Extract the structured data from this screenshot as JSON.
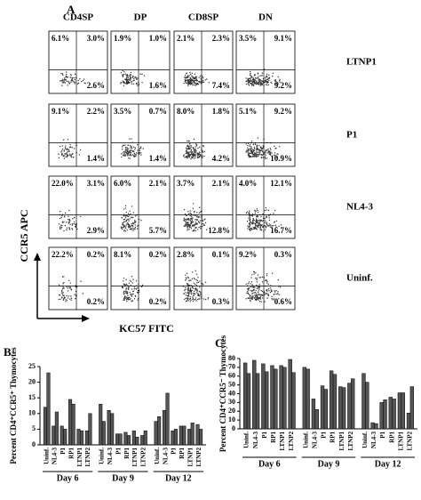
{
  "chart_data": [
    {
      "type": "flow-grid",
      "label": "A",
      "x_label": "KC57 FITC",
      "y_label": "CCR5 APC",
      "columns": [
        "CD4SP",
        "DP",
        "CD8SP",
        "DN"
      ],
      "rows": [
        "LTNP1",
        "P1",
        "NL4-3",
        "Uninf."
      ],
      "values": [
        [
          [
            6.1,
            3.0,
            2.6
          ],
          [
            1.9,
            1.0,
            1.6
          ],
          [
            2.1,
            2.3,
            7.4
          ],
          [
            3.5,
            9.1,
            9.2
          ]
        ],
        [
          [
            9.1,
            2.2,
            1.4
          ],
          [
            3.5,
            0.7,
            1.4
          ],
          [
            8.0,
            1.8,
            4.2
          ],
          [
            5.1,
            9.2,
            10.9
          ]
        ],
        [
          [
            22.0,
            3.1,
            2.9
          ],
          [
            6.0,
            2.1,
            5.7
          ],
          [
            3.7,
            2.1,
            12.8
          ],
          [
            4.0,
            12.1,
            16.7
          ]
        ],
        [
          [
            22.2,
            0.2,
            0.2
          ],
          [
            8.1,
            0.2,
            0.2
          ],
          [
            2.8,
            0.1,
            0.3
          ],
          [
            9.2,
            0.3,
            0.6
          ]
        ]
      ],
      "value_labels": [
        [
          [
            "6.1%",
            "3.0%",
            "2.6%"
          ],
          [
            "1.9%",
            "1.0%",
            "1.6%"
          ],
          [
            "2.1%",
            "2.3%",
            "7.4%"
          ],
          [
            "3.5%",
            "9.1%",
            "9.2%"
          ]
        ],
        [
          [
            "9.1%",
            "2.2%",
            "1.4%"
          ],
          [
            "3.5%",
            "0.7%",
            "1.4%"
          ],
          [
            "8.0%",
            "1.8%",
            "4.2%"
          ],
          [
            "5.1%",
            "9.2%",
            "10.9%"
          ]
        ],
        [
          [
            "22.0%",
            "3.1%",
            "2.9%"
          ],
          [
            "6.0%",
            "2.1%",
            "5.7%"
          ],
          [
            "3.7%",
            "2.1%",
            "12.8%"
          ],
          [
            "4.0%",
            "12.1%",
            "16.7%"
          ]
        ],
        [
          [
            "22.2%",
            "0.2%",
            "0.2%"
          ],
          [
            "8.1%",
            "0.2%",
            "0.2%"
          ],
          [
            "2.8%",
            "0.1%",
            "0.3%"
          ],
          [
            "9.2%",
            "0.3%",
            "0.6%"
          ]
        ]
      ]
    },
    {
      "type": "bar",
      "label": "B",
      "y_label": "Percent CD4⁺CCR5⁺ Thymocytes",
      "color": "#555555",
      "groups": [
        "Day 6",
        "Day 9",
        "Day 12"
      ],
      "categories": [
        "Uninf.",
        "NL4-3",
        "P1",
        "RP1",
        "LTNP1",
        "LTNP2",
        "Uninf.",
        "NL4-3",
        "P1",
        "RP1",
        "LTNP1",
        "LTNP2",
        "Uninf.",
        "NL4-3",
        "P1",
        "RP1",
        "LTNP1",
        "LTNP2"
      ],
      "series": [
        {
          "values": [
            12,
            6,
            6,
            14.5,
            5,
            4.5,
            13,
            11,
            3.5,
            4,
            4.5,
            3,
            7.5,
            11,
            4.5,
            6,
            5,
            6.5
          ]
        },
        {
          "values": [
            23,
            10.5,
            5,
            13,
            4.5,
            10,
            7.5,
            10,
            3.5,
            3,
            2.5,
            4.5,
            9,
            16.5,
            5,
            6,
            7,
            5
          ]
        }
      ],
      "ylim": [
        0,
        25
      ],
      "yticks": [
        0,
        5,
        10,
        15,
        20,
        25
      ]
    },
    {
      "type": "bar",
      "label": "C",
      "y_label": "Percent CD4⁺CCR5⁻ Thymocytes",
      "color": "#555555",
      "groups": [
        "Day 6",
        "Day 9",
        "Day 12"
      ],
      "categories": [
        "Uninf.",
        "NL4-3",
        "P1",
        "RP1",
        "LTNP1",
        "LTNP2",
        "Uninf.",
        "NL4-3",
        "P1",
        "RP1",
        "LTNP1",
        "LTNP2",
        "Uninf.",
        "NL4-3",
        "P1",
        "RP1",
        "LTNP1",
        "LTNP2"
      ],
      "series": [
        {
          "values": [
            75,
            78,
            74,
            72,
            72,
            79,
            70,
            34,
            49,
            66,
            48,
            52,
            63,
            7,
            30,
            36,
            41,
            18
          ]
        },
        {
          "values": [
            63,
            63,
            65,
            68,
            70,
            64,
            68,
            22,
            45,
            62,
            47,
            57,
            53,
            6,
            33,
            34,
            41,
            48
          ]
        }
      ],
      "ylim": [
        0,
        80
      ],
      "yticks": [
        0,
        10,
        20,
        30,
        40,
        50,
        60,
        70,
        80
      ]
    }
  ]
}
